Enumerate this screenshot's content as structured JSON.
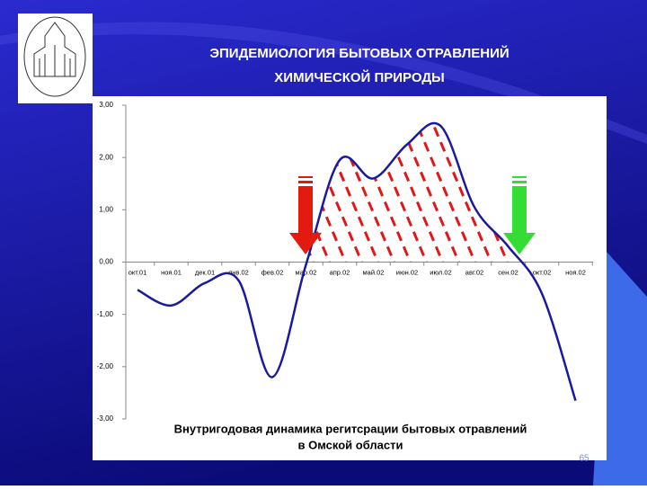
{
  "slide": {
    "title": [
      "ЭПИДЕМИОЛОГИЯ БЫТОВЫХ ОТРАВЛЕНИЙ",
      "ХИМИЧЕСКОЙ ПРИРОДЫ"
    ],
    "page_number": "65"
  },
  "chart_data": {
    "type": "line",
    "caption": [
      "Внутригодовая динамика регитсрации бытовых отравлений",
      "в Омской области"
    ],
    "categories": [
      "окт.01",
      "ноя.01",
      "дек.01",
      "янв.02",
      "фев.02",
      "мар.02",
      "апр.02",
      "май.02",
      "июн.02",
      "июл.02",
      "авг.02",
      "сен.02",
      "окт.02",
      "ноя.02"
    ],
    "series": [
      {
        "color": "#1a1aa0",
        "values": [
          -0.53,
          -0.83,
          -0.4,
          -0.35,
          -2.2,
          -0.05,
          1.95,
          1.6,
          2.25,
          2.6,
          1.05,
          0.3,
          -0.6,
          -2.65
        ]
      }
    ],
    "ylim": [
      -3,
      3
    ],
    "yticks": [
      {
        "value": 3,
        "label": "3,00"
      },
      {
        "value": 2,
        "label": "2,00"
      },
      {
        "value": 1,
        "label": "1,00"
      },
      {
        "value": 0,
        "label": "0,00"
      },
      {
        "value": -1,
        "label": "-1,00"
      },
      {
        "value": -2,
        "label": "-2,00"
      },
      {
        "value": -3,
        "label": "-3,00"
      }
    ]
  }
}
